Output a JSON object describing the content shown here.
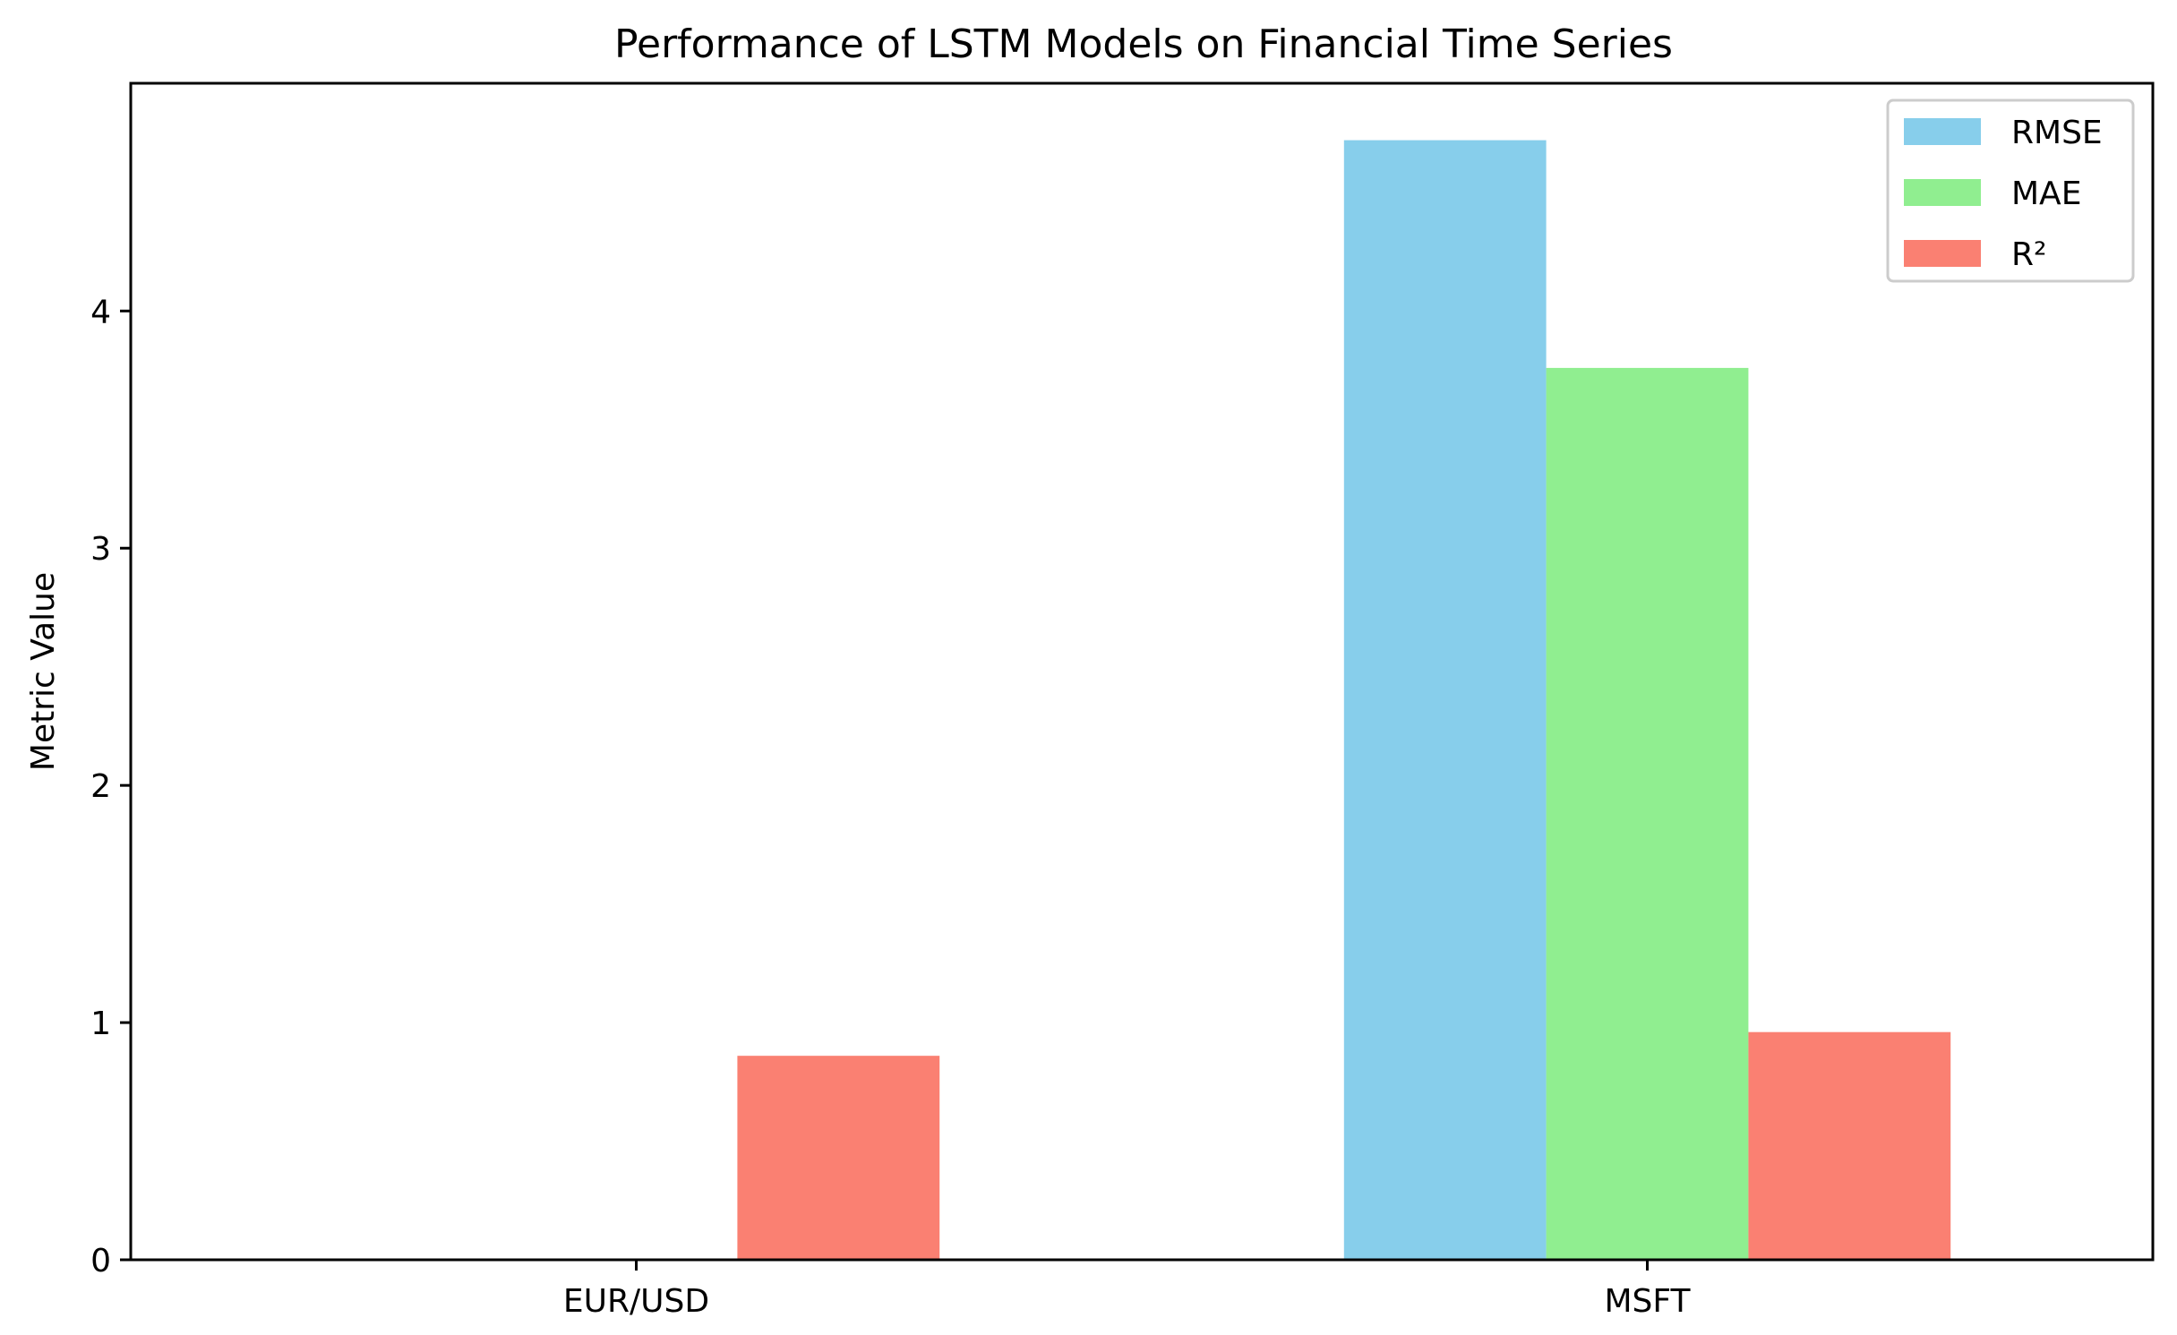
{
  "chart_data": {
    "type": "bar",
    "title": "Performance of LSTM Models on Financial Time Series",
    "xlabel": "",
    "ylabel": "Metric Value",
    "categories": [
      "EUR/USD",
      "MSFT"
    ],
    "series": [
      {
        "name": "RMSE",
        "color": "#87CEEB",
        "values": [
          0.004,
          4.72
        ]
      },
      {
        "name": "MAE",
        "color": "#90EE90",
        "values": [
          0.003,
          3.76
        ]
      },
      {
        "name": "R²",
        "color": "#FA8072",
        "values": [
          0.86,
          0.96
        ]
      }
    ],
    "ylim": [
      0,
      4.96
    ],
    "yticks": [
      0,
      1,
      2,
      3,
      4
    ],
    "grid": false,
    "legend_position": "top-right"
  }
}
